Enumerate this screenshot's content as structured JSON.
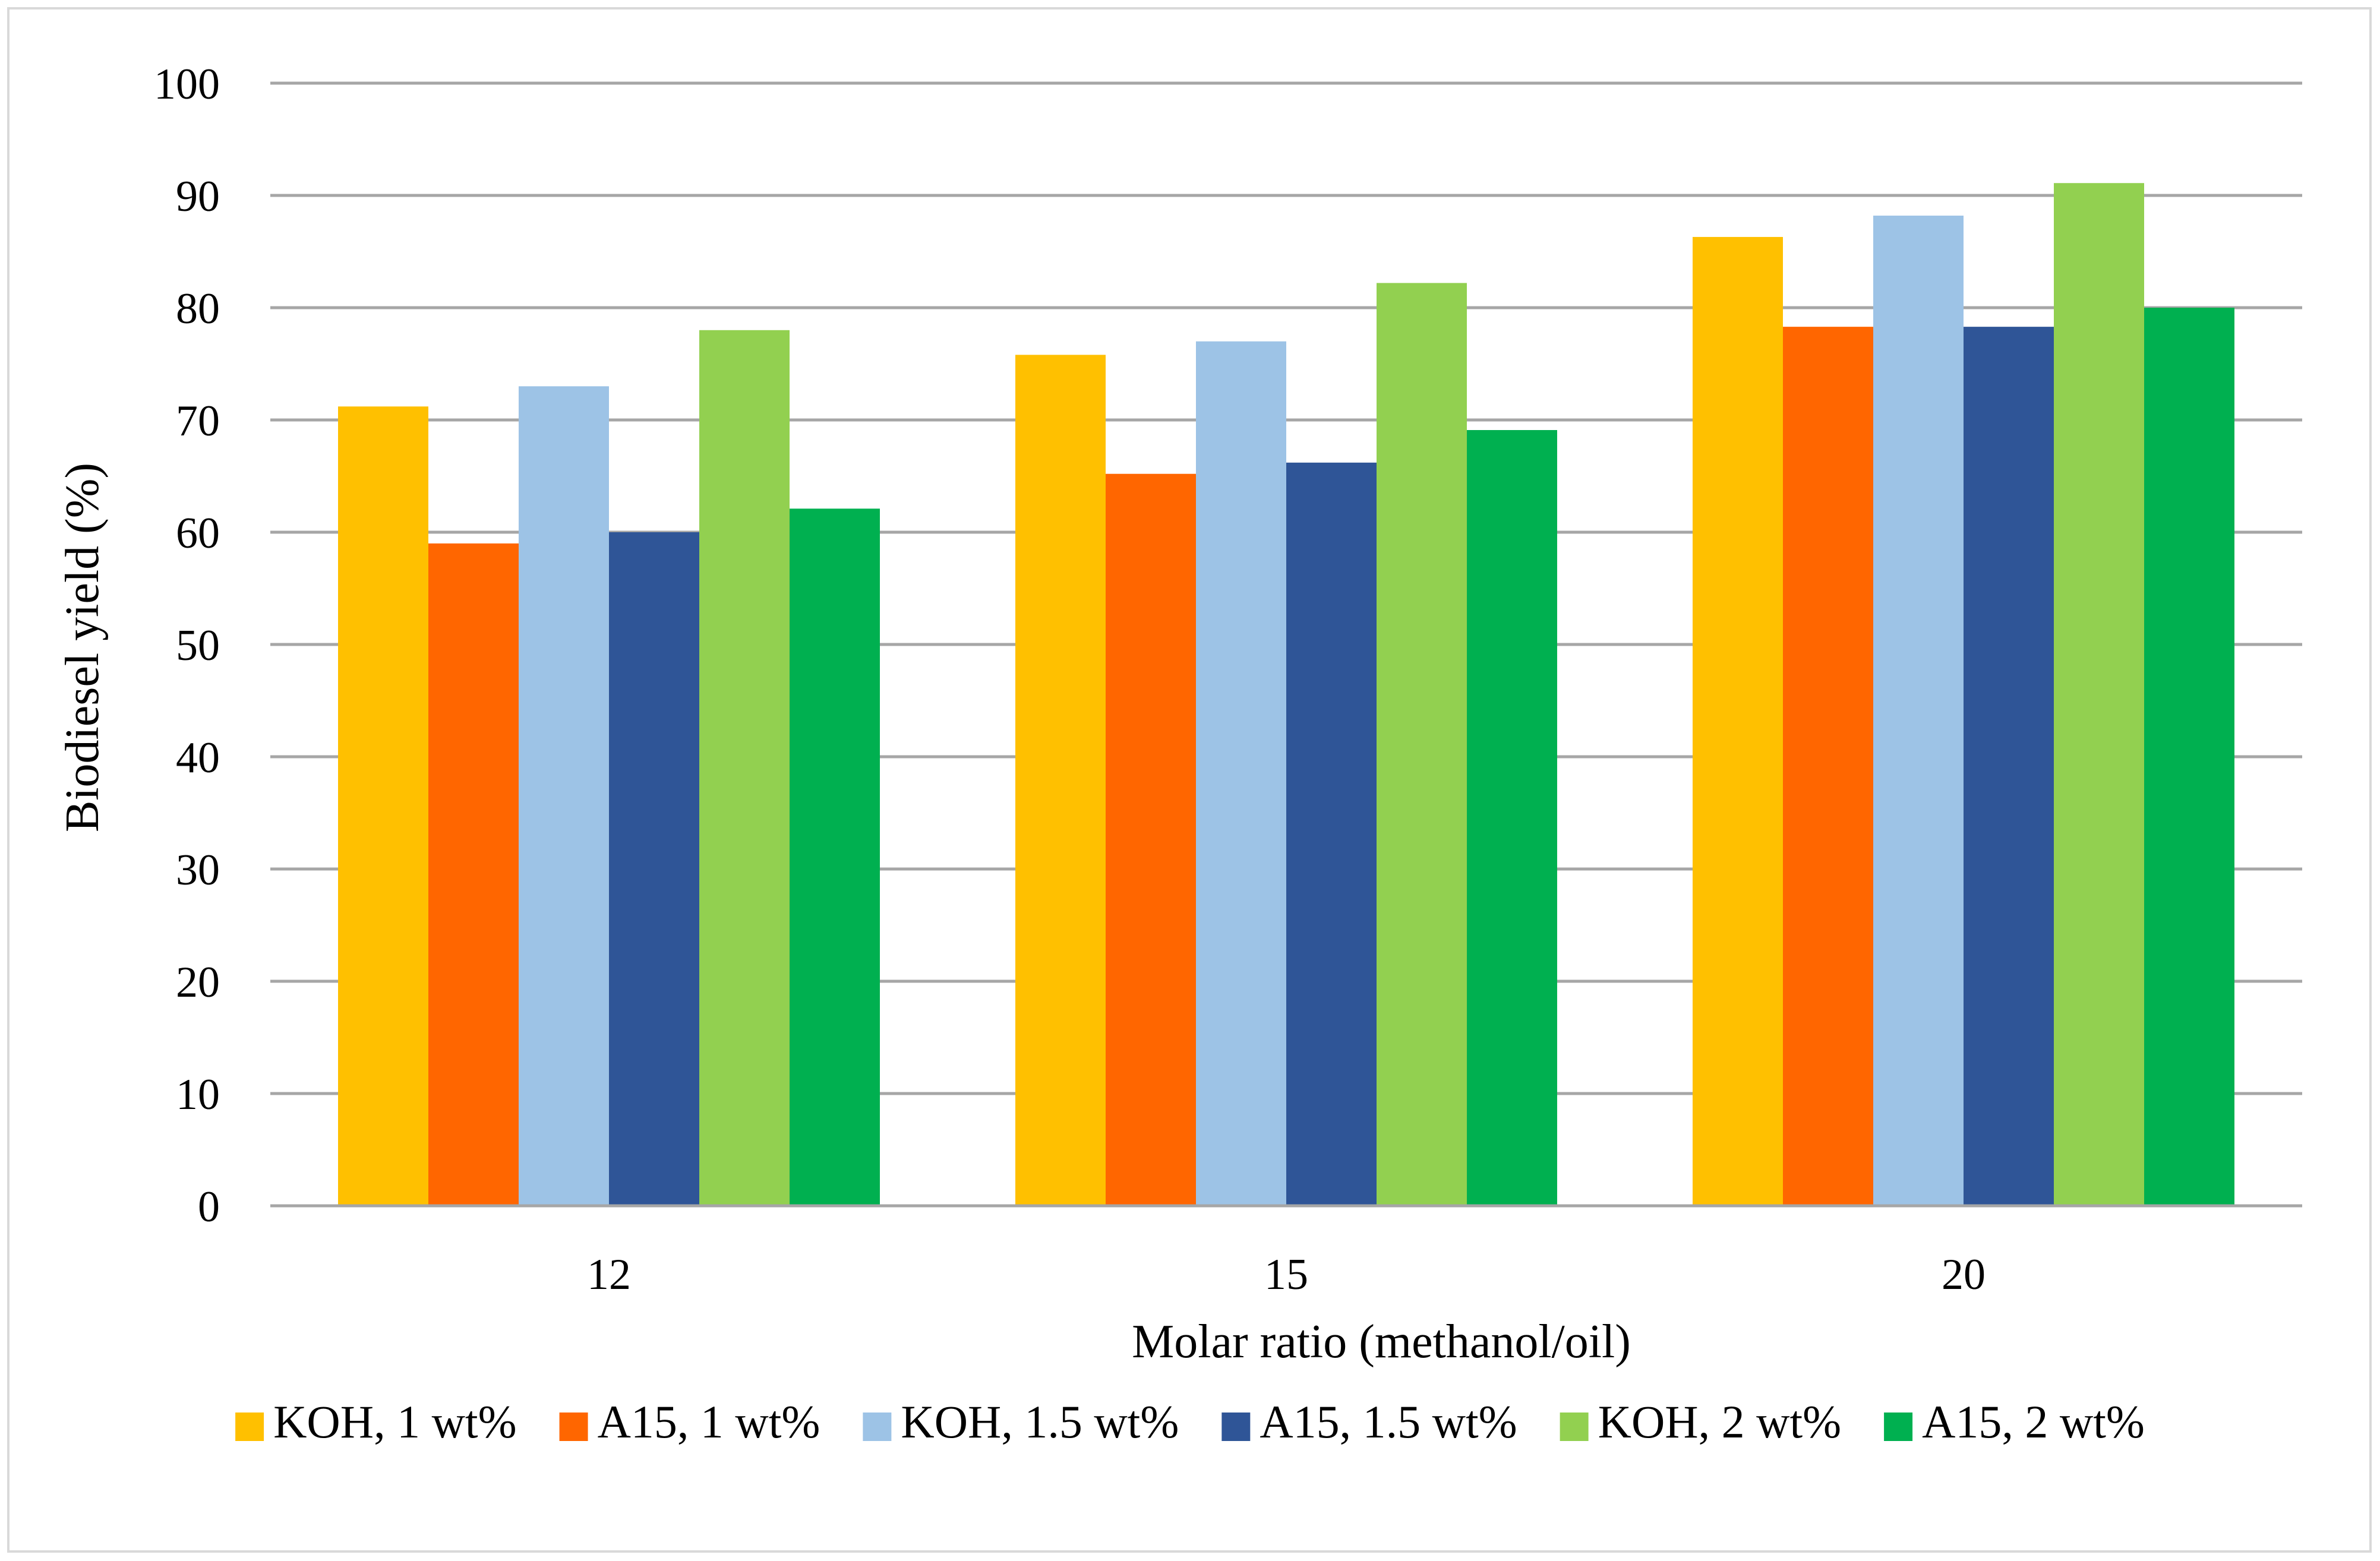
{
  "chart_data": {
    "type": "bar",
    "title": "",
    "xlabel": "Molar ratio (methanol/oil)",
    "ylabel": "Biodiesel yield (%)",
    "categories": [
      "12",
      "15",
      "20"
    ],
    "ylim": [
      0,
      100
    ],
    "yticks": [
      0,
      10,
      20,
      30,
      40,
      50,
      60,
      70,
      80,
      90,
      100
    ],
    "grid": true,
    "legend_position": "bottom",
    "series": [
      {
        "name": "KOH, 1 wt%",
        "color": "#FFC000",
        "values": [
          71.2,
          75.8,
          86.3
        ]
      },
      {
        "name": "A15, 1 wt%",
        "color": "#FF6600",
        "values": [
          59.0,
          65.2,
          78.3
        ]
      },
      {
        "name": "KOH, 1.5 wt%",
        "color": "#9DC3E6",
        "values": [
          73.0,
          77.0,
          88.2
        ]
      },
      {
        "name": "A15, 1.5 wt%",
        "color": "#2F5597",
        "values": [
          60.0,
          66.2,
          78.3
        ]
      },
      {
        "name": "KOH, 2 wt%",
        "color": "#92D050",
        "values": [
          78.0,
          82.2,
          91.1
        ]
      },
      {
        "name": "A15, 2 wt%",
        "color": "#00B050",
        "values": [
          62.1,
          69.1,
          80.0
        ]
      }
    ]
  }
}
